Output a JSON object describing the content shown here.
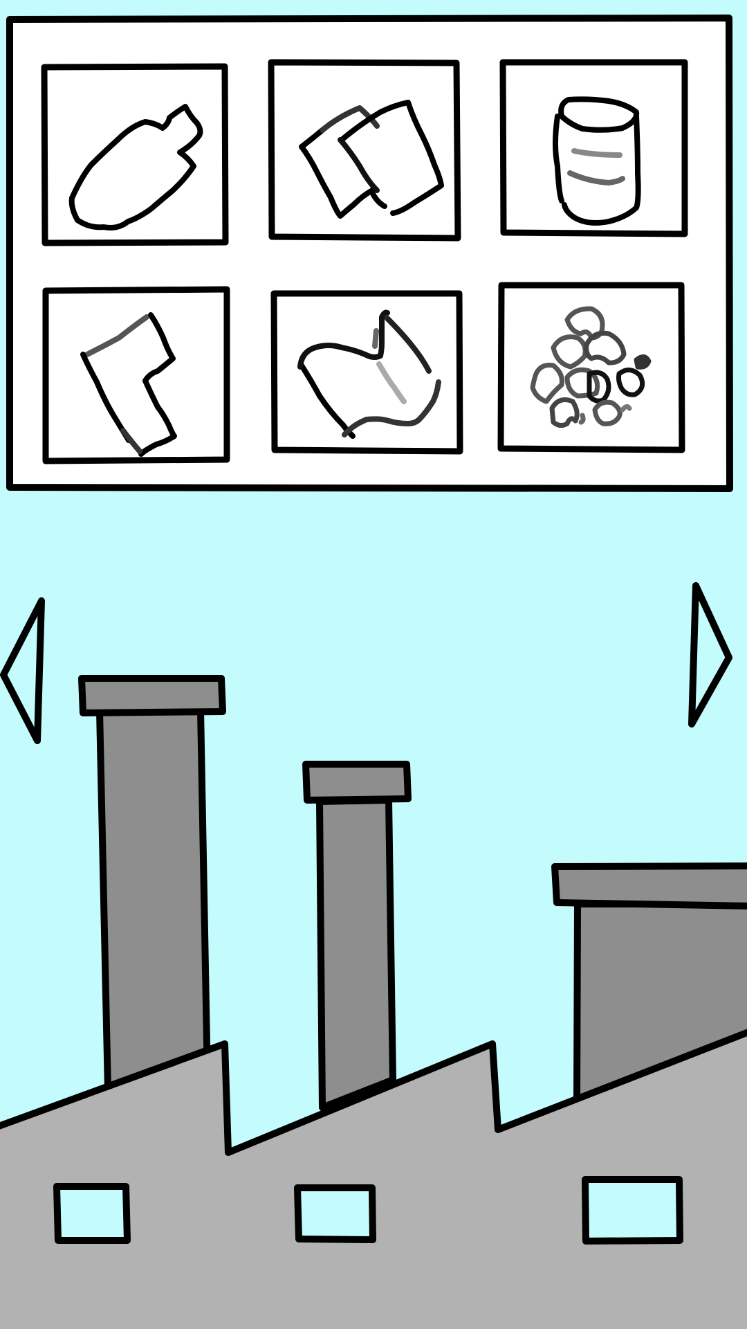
{
  "colors": {
    "sky": "#c4fcfd",
    "outline": "#000000",
    "panel": "#ffffff",
    "chimney": "#8e8e8e",
    "building": "#b2b2b2",
    "window_glass": "#c4fcfd"
  },
  "inventory": {
    "slots": [
      {
        "icon": "plastic-bottle-icon"
      },
      {
        "icon": "crumpled-paper-icon"
      },
      {
        "icon": "tin-can-icon"
      },
      {
        "icon": "sock-icon"
      },
      {
        "icon": "plastic-bag-icon"
      },
      {
        "icon": "bubble-wrap-icon"
      }
    ]
  },
  "navigation": {
    "left": {
      "icon": "left-arrow-icon"
    },
    "right": {
      "icon": "right-arrow-icon"
    }
  },
  "factory": {
    "chimney_count": 3,
    "window_count": 3
  }
}
